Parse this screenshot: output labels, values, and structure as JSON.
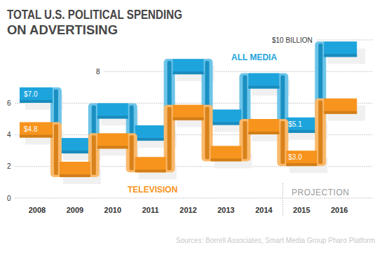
{
  "chart_data": {
    "type": "step",
    "title": "TOTAL U.S. POLITICAL SPENDING\nON ADVERTISING",
    "categories": [
      "2008",
      "2009",
      "2010",
      "2011",
      "2012",
      "2013",
      "2014",
      "2015",
      "2016"
    ],
    "series": [
      {
        "name": "ALL MEDIA",
        "color": "#1ea4dd",
        "values": [
          7.0,
          3.8,
          6.0,
          4.6,
          8.8,
          5.6,
          7.9,
          5.1,
          9.9
        ],
        "value_labels": [
          "$7.0",
          null,
          null,
          null,
          null,
          null,
          null,
          "$5.1",
          null
        ]
      },
      {
        "name": "TELEVISION",
        "color": "#f7941d",
        "values": [
          4.8,
          2.3,
          4.1,
          2.6,
          5.9,
          3.3,
          5.0,
          3.0,
          6.3
        ],
        "value_labels": [
          "$4.8",
          null,
          null,
          null,
          null,
          null,
          null,
          "$3.0",
          null
        ]
      }
    ],
    "ylim": [
      0,
      10
    ],
    "yticks": [
      0,
      2,
      4,
      6,
      8,
      {
        "value": 10,
        "label": "$10 BILLION"
      }
    ],
    "grid": true,
    "data_labels": true,
    "annotation": "PROJECTION",
    "source": "Sources: Borrell Associates, Smart Media Group Pharo Platform"
  }
}
